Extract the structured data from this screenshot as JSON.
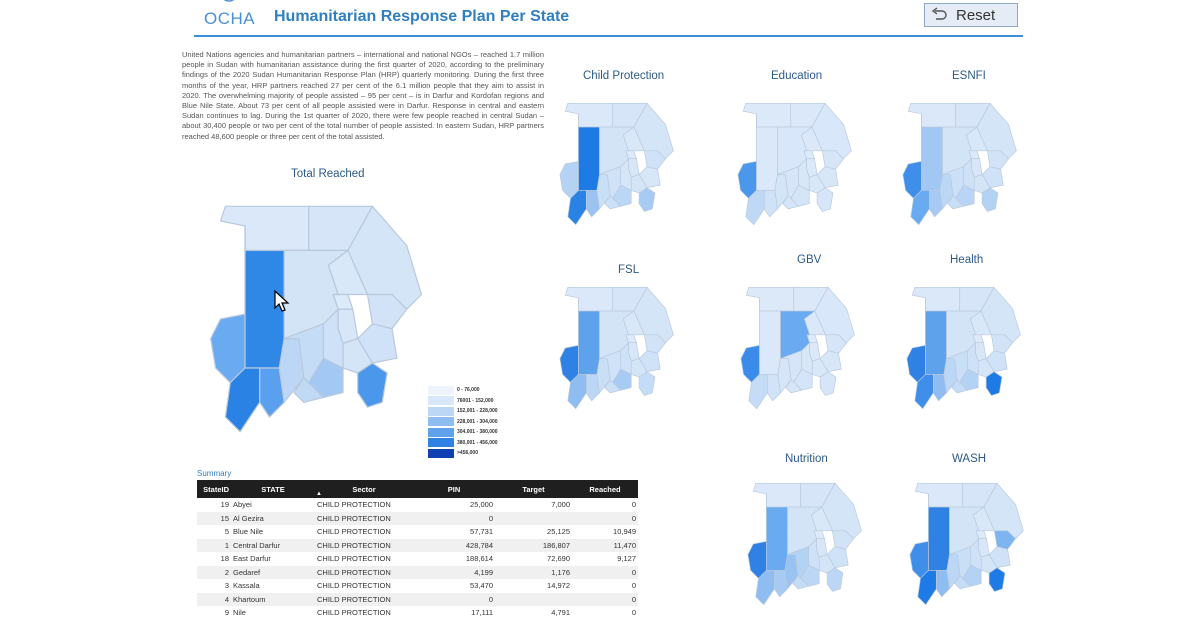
{
  "header": {
    "logo_text": "OCHA",
    "title": "Humanitarian Response Plan Per State",
    "reset_label": "Reset",
    "accent_color": "#2f7fc1"
  },
  "intro_text": "United Nations agencies and humanitarian partners – international and national NGOs – reached 1.7 million people in Sudan with humanitarian assistance during the first quarter of 2020, according to the preliminary findings of the 2020 Sudan Humanitarian Response Plan (HRP) quarterly monitoring. During the first three months of the year, HRP partners reached 27 per cent of the 6.1 million people that they aim to assist in 2020. The overwhelming majority of people assisted – 95 per cent – is in Darfur and Kordofan regions and Blue Nile State. About 73 per cent of all people assisted were in Darfur. Response in central and eastern Sudan continues to lag. During the 1st quarter of 2020, there were few people reached in central Sudan – about 30,400 people or two per cent of the total number of people assisted. In eastern Sudan, HRP partners reached 48,600 people or three per cent of the total assisted.",
  "main_map": {
    "title": "Total Reached",
    "colors": {
      "ne": "#d6e6f8",
      "nw": "#dae8f9",
      "red_sea": "#d4e5f8",
      "nile": "#d9e8f9",
      "khartoum": "#dceaf9",
      "kassala": "#d2e3f7",
      "gedaref": "#cfe2f7",
      "nk": "#d3e4f7",
      "wn": "#cfe1f7",
      "sennar": "#d4e5f8",
      "gez": "#d8e7f8",
      "nd": "#2f88e6",
      "wd": "#6aaaf0",
      "cd": "#2a82e4",
      "sd": "#5aa0ee",
      "ed": "#bcd6f5",
      "wk": "#c5dcf6",
      "sk": "#a3c8f3",
      "bn": "#4a97ec",
      "abyei": "#c0d9f5"
    }
  },
  "legend": {
    "items": [
      {
        "label": "0 - 76,000",
        "color": "#eef4fc"
      },
      {
        "label": "76001 - 152,000",
        "color": "#d8e7f9"
      },
      {
        "label": "152,001 - 228,000",
        "color": "#bcd6f5"
      },
      {
        "label": "228,001 - 304,000",
        "color": "#8fbcf1"
      },
      {
        "label": "304,001 - 380,000",
        "color": "#5ea2ec"
      },
      {
        "label": "380,001 - 456,000",
        "color": "#2f82e3"
      },
      {
        "label": ">456,000",
        "color": "#0f3fb0"
      }
    ]
  },
  "sector_maps": [
    {
      "title": "Child Protection",
      "colors": {
        "ne": "#d6e6f8",
        "nw": "#dae8f9",
        "red_sea": "#d4e5f8",
        "nile": "#d9e8f9",
        "khartoum": "#dceaf9",
        "kassala": "#cfe2f7",
        "gedaref": "#d7e7f8",
        "nk": "#d3e4f7",
        "wn": "#d6e6f8",
        "sennar": "#d4e5f8",
        "gez": "#d8e7f8",
        "nd": "#1e7be6",
        "wd": "#b3d2f4",
        "cd": "#2a83e4",
        "sd": "#9ac3f2",
        "ed": "#c9dff6",
        "wk": "#cfe2f7",
        "sk": "#bcd6f5",
        "bn": "#a8cbf3",
        "abyei": "#cbe0f6"
      }
    },
    {
      "title": "Education",
      "colors": {
        "ne": "#dae8f9",
        "nw": "#dce9f9",
        "red_sea": "#d8e7f9",
        "nile": "#dae8f9",
        "khartoum": "#dceaf9",
        "kassala": "#d6e6f8",
        "gedaref": "#d8e7f8",
        "nk": "#d8e7f9",
        "wn": "#d8e7f8",
        "sennar": "#d9e8f8",
        "gez": "#dae8f9",
        "nd": "#dae8f9",
        "wd": "#4a97ec",
        "cd": "#bed8f5",
        "sd": "#cfe2f7",
        "ed": "#d4e5f8",
        "wk": "#d6e6f8",
        "sk": "#d4e5f8",
        "bn": "#d6e6f8",
        "abyei": "#d6e6f8"
      }
    },
    {
      "title": "ESNFI",
      "colors": {
        "ne": "#d6e6f8",
        "nw": "#dae8f9",
        "red_sea": "#d4e5f8",
        "nile": "#d9e8f9",
        "khartoum": "#dceaf9",
        "kassala": "#d2e3f7",
        "gedaref": "#cfe2f7",
        "nk": "#d3e4f7",
        "wn": "#cfe1f7",
        "sennar": "#d4e5f8",
        "gez": "#d8e7f8",
        "nd": "#a2c7f3",
        "wd": "#3f8fea",
        "cd": "#6aaaf0",
        "sd": "#a6caf3",
        "ed": "#bcd6f5",
        "wk": "#cbe0f6",
        "sk": "#b9d4f5",
        "bn": "#b3d2f4",
        "abyei": "#c9dff6"
      }
    },
    {
      "title": "FSL",
      "colors": {
        "ne": "#d6e6f8",
        "nw": "#dae8f9",
        "red_sea": "#d4e5f8",
        "nile": "#d9e8f9",
        "khartoum": "#dceaf9",
        "kassala": "#d2e3f7",
        "gedaref": "#cfe2f7",
        "nk": "#d3e4f7",
        "wn": "#cfe1f7",
        "sennar": "#d4e5f8",
        "gez": "#d8e7f8",
        "nd": "#5ea2ec",
        "wd": "#2f82e3",
        "cd": "#8fbcf1",
        "sd": "#bcd6f5",
        "ed": "#c9dff6",
        "wk": "#cfe2f7",
        "sk": "#a8cbf3",
        "bn": "#c5dcf6",
        "abyei": "#cbe0f6"
      }
    },
    {
      "title": "GBV",
      "colors": {
        "ne": "#dae8f9",
        "nw": "#dce9f9",
        "red_sea": "#d8e7f9",
        "nile": "#dae8f9",
        "khartoum": "#dceaf9",
        "kassala": "#d6e6f8",
        "gedaref": "#d8e7f8",
        "nk": "#6aaaf0",
        "wn": "#d8e7f8",
        "sennar": "#d9e8f8",
        "gez": "#dae8f9",
        "nd": "#dae8f9",
        "wd": "#3a8ce8",
        "cd": "#c5dcf6",
        "sd": "#d2e3f7",
        "ed": "#d6e6f8",
        "wk": "#d6e6f8",
        "sk": "#d4e5f8",
        "bn": "#d6e6f8",
        "abyei": "#d6e6f8"
      }
    },
    {
      "title": "Health",
      "colors": {
        "ne": "#d6e6f8",
        "nw": "#dae8f9",
        "red_sea": "#d4e5f8",
        "nile": "#d9e8f9",
        "khartoum": "#dceaf9",
        "kassala": "#d2e3f7",
        "gedaref": "#cfe2f7",
        "nk": "#d3e4f7",
        "wn": "#cfe1f7",
        "sennar": "#d4e5f8",
        "gez": "#d8e7f8",
        "nd": "#5ea2ec",
        "wd": "#2f82e3",
        "cd": "#3f8fea",
        "sd": "#8fbcf1",
        "ed": "#bcd6f5",
        "wk": "#c9dff6",
        "sk": "#b3d2f4",
        "bn": "#1e7be6",
        "abyei": "#c5dcf6"
      }
    },
    {
      "title": "Nutrition",
      "colors": {
        "ne": "#d6e6f8",
        "nw": "#dae8f9",
        "red_sea": "#d4e5f8",
        "nile": "#d9e8f9",
        "khartoum": "#dceaf9",
        "kassala": "#d2e3f7",
        "gedaref": "#cfe2f7",
        "nk": "#d3e4f7",
        "wn": "#cfe1f7",
        "sennar": "#d4e5f8",
        "gez": "#d8e7f8",
        "nd": "#6aaaf0",
        "wd": "#2f82e3",
        "cd": "#8fbcf1",
        "sd": "#a6caf3",
        "ed": "#9ac3f2",
        "wk": "#b3d2f4",
        "sk": "#bcd6f5",
        "bn": "#bcd6f5",
        "abyei": "#c5dcf6"
      }
    },
    {
      "title": "WASH",
      "colors": {
        "ne": "#d6e6f8",
        "nw": "#dae8f9",
        "red_sea": "#d4e5f8",
        "nile": "#d9e8f9",
        "khartoum": "#dceaf9",
        "kassala": "#7eb4f0",
        "gedaref": "#cfe2f7",
        "nk": "#d3e4f7",
        "wn": "#cfe1f7",
        "sennar": "#d4e5f8",
        "gez": "#d8e7f8",
        "nd": "#2f82e3",
        "wd": "#3f8fea",
        "cd": "#1e7be6",
        "sd": "#8fbcf1",
        "ed": "#bcd6f5",
        "wk": "#c9dff6",
        "sk": "#b3d2f4",
        "bn": "#1e7be6",
        "abyei": "#c5dcf6"
      }
    }
  ],
  "table": {
    "label": "Summary",
    "columns": [
      "StateID",
      "STATE",
      "Sector",
      "PIN",
      "Target",
      "Reached"
    ],
    "rows": [
      [
        "19",
        "Abyei",
        "CHILD PROTECTION",
        "25,000",
        "7,000",
        "0"
      ],
      [
        "15",
        "Al Gezira",
        "CHILD PROTECTION",
        "0",
        "",
        "0"
      ],
      [
        "5",
        "Blue Nile",
        "CHILD PROTECTION",
        "57,731",
        "25,125",
        "10,949"
      ],
      [
        "1",
        "Central Darfur",
        "CHILD PROTECTION",
        "428,784",
        "186,807",
        "11,470"
      ],
      [
        "18",
        "East Darfur",
        "CHILD PROTECTION",
        "188,614",
        "72,690",
        "9,127"
      ],
      [
        "2",
        "Gedaref",
        "CHILD PROTECTION",
        "4,199",
        "1,176",
        "0"
      ],
      [
        "3",
        "Kassala",
        "CHILD PROTECTION",
        "53,470",
        "14,972",
        "0"
      ],
      [
        "4",
        "Khartoum",
        "CHILD PROTECTION",
        "0",
        "",
        "0"
      ],
      [
        "9",
        "Nile",
        "CHILD PROTECTION",
        "17,111",
        "4,791",
        "0"
      ]
    ]
  }
}
